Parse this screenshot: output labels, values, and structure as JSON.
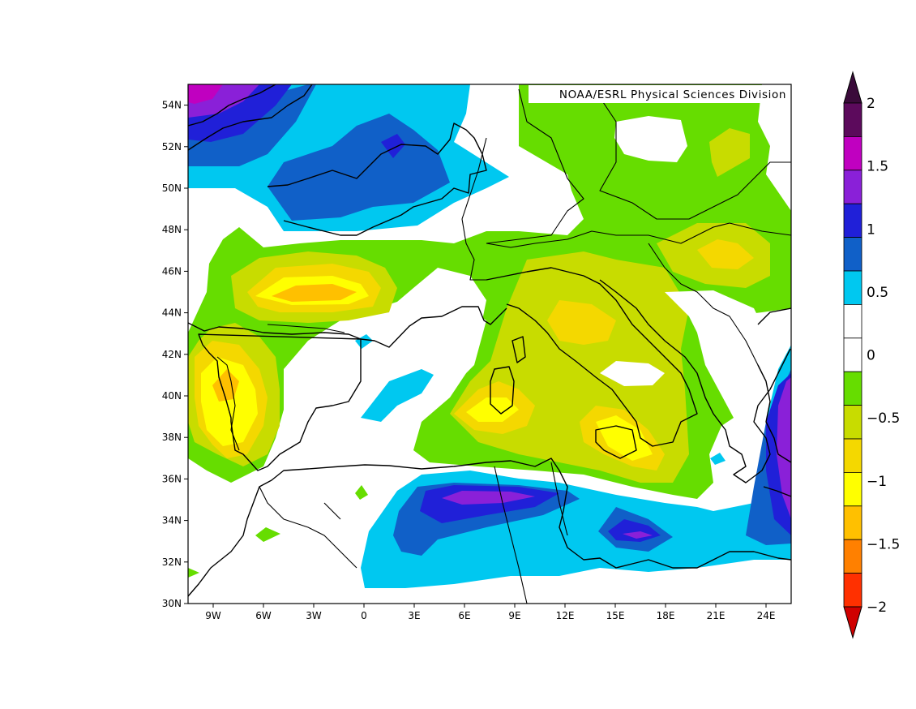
{
  "credit": "NOAA/ESRL Physical Sciences Division",
  "map": {
    "lon_range": [
      -10.5,
      25.5
    ],
    "lat_range": [
      30,
      55
    ],
    "x_ticks": [
      "9W",
      "6W",
      "3W",
      "0",
      "3E",
      "6E",
      "9E",
      "12E",
      "15E",
      "18E",
      "21E",
      "24E"
    ],
    "y_ticks": [
      "30N",
      "32N",
      "34N",
      "36N",
      "38N",
      "40N",
      "42N",
      "44N",
      "46N",
      "48N",
      "50N",
      "52N",
      "54N"
    ]
  },
  "colorbar": {
    "labels": [
      "2",
      "1.5",
      "1",
      "0.5",
      "0",
      "−0.5",
      "−1",
      "−1.5",
      "−2"
    ],
    "colors_top_to_bottom": [
      "#5c0a5c",
      "#c000c0",
      "#8a20d8",
      "#2020d8",
      "#1060c8",
      "#00c8f0",
      "#ffffff",
      "#ffffff",
      "#66dd00",
      "#c8dc00",
      "#f4d800",
      "#ffff00",
      "#ffc000",
      "#ff8000",
      "#ff3000"
    ],
    "max_arrow_color": "#3a0a3a",
    "min_arrow_color": "#d00000"
  }
}
